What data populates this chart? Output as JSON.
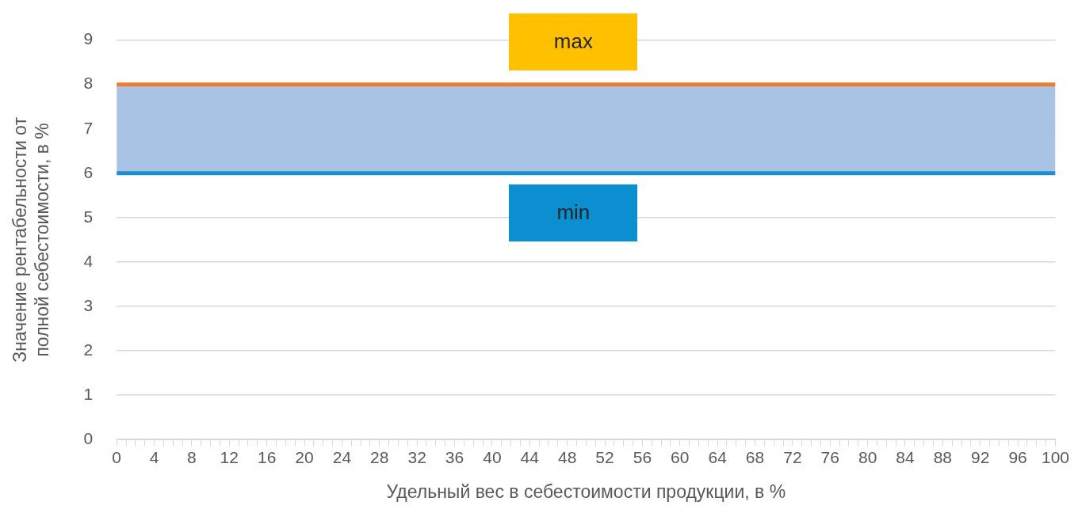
{
  "chart_data": {
    "type": "line",
    "xlabel": "Удельный вес в себестоимости продукции, в %",
    "ylabel": "Значение рентабельности от полной себестоимости, в %",
    "x": [
      0,
      100
    ],
    "series": [
      {
        "name": "max",
        "color": "#ed7d31",
        "values": [
          8,
          8
        ]
      },
      {
        "name": "min",
        "color": "#1c8fd2",
        "values": [
          6,
          6
        ]
      }
    ],
    "bands": [
      {
        "axis": "y",
        "from": 6,
        "to": 8,
        "color": "#a8c3e3"
      }
    ],
    "xlim": [
      0,
      100
    ],
    "ylim": [
      0,
      9
    ],
    "xticks": [
      0,
      {
        "value": 1,
        "label": null
      },
      {
        "value": 2,
        "label": null
      },
      {
        "value": 3,
        "label": null
      },
      4,
      {
        "value": 5,
        "label": null
      },
      {
        "value": 6,
        "label": null
      },
      {
        "value": 7,
        "label": null
      },
      8,
      {
        "value": 9,
        "label": null
      },
      {
        "value": 10,
        "label": null
      },
      {
        "value": 11,
        "label": null
      },
      12,
      {
        "value": 13,
        "label": null
      },
      {
        "value": 14,
        "label": null
      },
      {
        "value": 15,
        "label": null
      },
      16,
      {
        "value": 17,
        "label": null
      },
      {
        "value": 18,
        "label": null
      },
      {
        "value": 19,
        "label": null
      },
      20,
      {
        "value": 21,
        "label": null
      },
      {
        "value": 22,
        "label": null
      },
      {
        "value": 23,
        "label": null
      },
      24,
      {
        "value": 25,
        "label": null
      },
      {
        "value": 26,
        "label": null
      },
      {
        "value": 27,
        "label": null
      },
      28,
      {
        "value": 29,
        "label": null
      },
      {
        "value": 30,
        "label": null
      },
      {
        "value": 31,
        "label": null
      },
      32,
      {
        "value": 33,
        "label": null
      },
      {
        "value": 34,
        "label": null
      },
      {
        "value": 35,
        "label": null
      },
      36,
      {
        "value": 37,
        "label": null
      },
      {
        "value": 38,
        "label": null
      },
      {
        "value": 39,
        "label": null
      },
      40,
      {
        "value": 41,
        "label": null
      },
      {
        "value": 42,
        "label": null
      },
      {
        "value": 43,
        "label": null
      },
      44,
      {
        "value": 45,
        "label": null
      },
      {
        "value": 46,
        "label": null
      },
      {
        "value": 47,
        "label": null
      },
      48,
      {
        "value": 49,
        "label": null
      },
      {
        "value": 50,
        "label": null
      },
      {
        "value": 51,
        "label": null
      },
      52,
      {
        "value": 53,
        "label": null
      },
      {
        "value": 54,
        "label": null
      },
      {
        "value": 55,
        "label": null
      },
      56,
      {
        "value": 57,
        "label": null
      },
      {
        "value": 58,
        "label": null
      },
      {
        "value": 59,
        "label": null
      },
      60,
      {
        "value": 61,
        "label": null
      },
      {
        "value": 62,
        "label": null
      },
      {
        "value": 63,
        "label": null
      },
      64,
      {
        "value": 65,
        "label": null
      },
      {
        "value": 66,
        "label": null
      },
      {
        "value": 67,
        "label": null
      },
      68,
      {
        "value": 69,
        "label": null
      },
      {
        "value": 70,
        "label": null
      },
      {
        "value": 71,
        "label": null
      },
      72,
      {
        "value": 73,
        "label": null
      },
      {
        "value": 74,
        "label": null
      },
      {
        "value": 75,
        "label": null
      },
      76,
      {
        "value": 77,
        "label": null
      },
      {
        "value": 78,
        "label": null
      },
      {
        "value": 79,
        "label": null
      },
      80,
      {
        "value": 81,
        "label": null
      },
      {
        "value": 82,
        "label": null
      },
      {
        "value": 83,
        "label": null
      },
      84,
      {
        "value": 85,
        "label": null
      },
      {
        "value": 86,
        "label": null
      },
      {
        "value": 87,
        "label": null
      },
      88,
      {
        "value": 89,
        "label": null
      },
      {
        "value": 90,
        "label": null
      },
      {
        "value": 91,
        "label": null
      },
      92,
      {
        "value": 93,
        "label": null
      },
      {
        "value": 94,
        "label": null
      },
      {
        "value": 95,
        "label": null
      },
      96,
      {
        "value": 97,
        "label": null
      },
      {
        "value": 98,
        "label": null
      },
      {
        "value": 99,
        "label": null
      },
      100
    ],
    "yticks": [
      0,
      1,
      2,
      3,
      4,
      5,
      6,
      7,
      8,
      9
    ],
    "grid": "y",
    "legend": false,
    "marker": "none",
    "line_style": "solid"
  }
}
